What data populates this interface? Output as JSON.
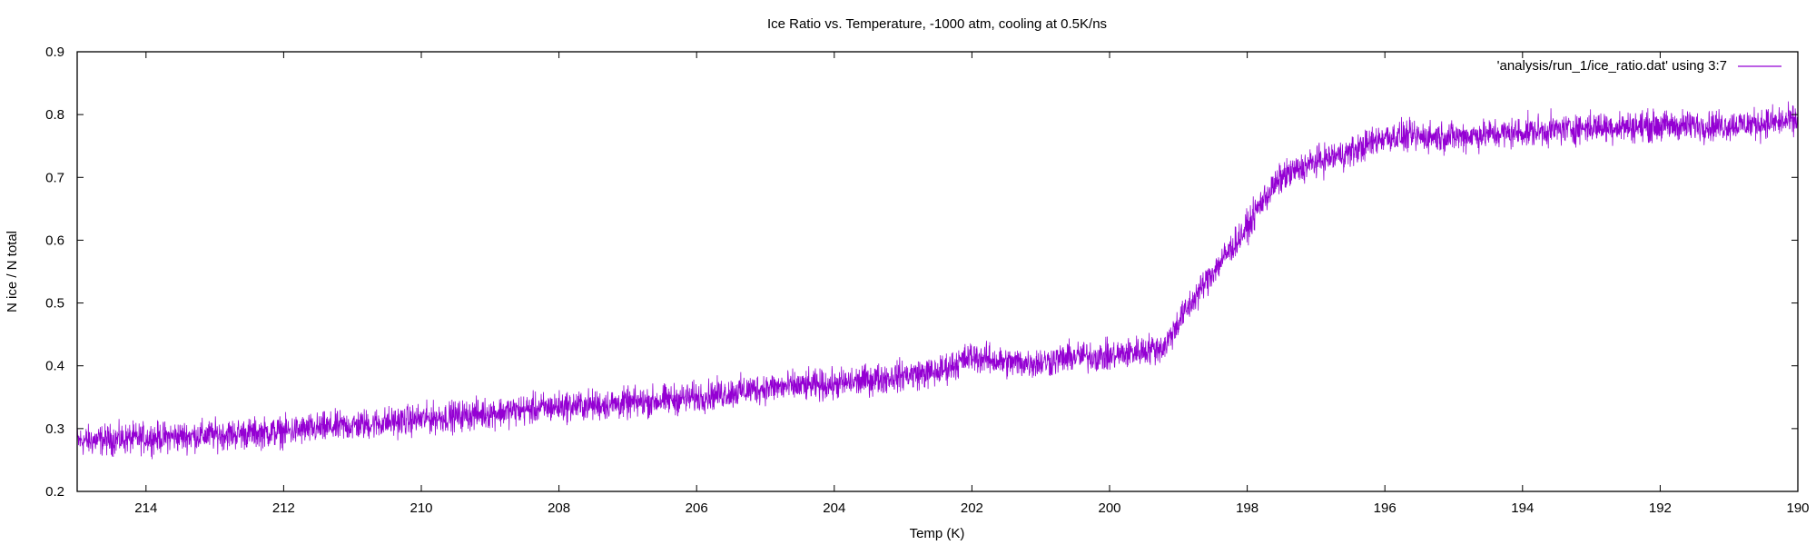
{
  "chart_data": {
    "type": "line",
    "title": "Ice Ratio vs. Temperature, -1000 atm, cooling at 0.5K/ns",
    "xlabel": "Temp (K)",
    "ylabel": "N ice / N total",
    "xlim": [
      215,
      190
    ],
    "ylim": [
      0.2,
      0.9
    ],
    "x_reversed": true,
    "xticks": [
      214,
      212,
      210,
      208,
      206,
      204,
      202,
      200,
      198,
      196,
      194,
      192,
      190
    ],
    "yticks": [
      0.2,
      0.3,
      0.4,
      0.5,
      0.6,
      0.7,
      0.8,
      0.9
    ],
    "xtick_labels": [
      "214",
      "212",
      "210",
      "208",
      "206",
      "204",
      "202",
      "200",
      "198",
      "196",
      "194",
      "192",
      "190"
    ],
    "ytick_labels": [
      "0.2",
      "0.3",
      "0.4",
      "0.5",
      "0.6",
      "0.7",
      "0.8",
      "0.9"
    ],
    "grid": false,
    "legend": "top-right",
    "series": [
      {
        "name": "'analysis/run_1/ice_ratio.dat' using 3:7",
        "color": "#9400d3",
        "noise_amplitude": 0.012,
        "x": [
          215,
          214,
          213,
          212,
          211,
          210,
          209,
          208,
          207,
          206,
          205,
          204,
          203,
          202.5,
          202,
          201.5,
          201,
          200.5,
          200,
          199.5,
          199.2,
          199,
          198.5,
          198,
          197.8,
          197.5,
          197,
          196.5,
          196,
          195.5,
          195,
          194,
          193,
          192,
          191,
          190
        ],
        "y": [
          0.28,
          0.285,
          0.29,
          0.295,
          0.305,
          0.315,
          0.325,
          0.335,
          0.34,
          0.35,
          0.365,
          0.37,
          0.385,
          0.39,
          0.415,
          0.405,
          0.405,
          0.415,
          0.415,
          0.425,
          0.43,
          0.47,
          0.55,
          0.62,
          0.66,
          0.7,
          0.725,
          0.74,
          0.765,
          0.765,
          0.765,
          0.772,
          0.78,
          0.782,
          0.783,
          0.79
        ]
      }
    ]
  }
}
